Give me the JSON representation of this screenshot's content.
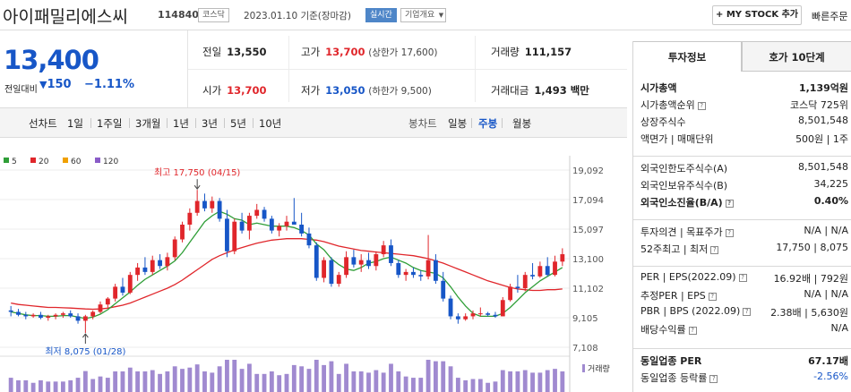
{
  "header": {
    "name": "아이패밀리에스씨",
    "code": "114840",
    "market": "코스닥",
    "date_text": "2023.01.10 기준(장마감)",
    "realtime": "실시간",
    "overview": "기업개요",
    "mystock": "+ MY STOCK 추가",
    "quick_order": "빠른주문"
  },
  "price": {
    "current": "13,400",
    "change_label": "전일대비",
    "change": "150",
    "change_pct": "−1.11%"
  },
  "summary": {
    "prev_label": "전일",
    "prev": "13,550",
    "high_label": "고가",
    "high": "13,700",
    "upper_limit": "(상한가 17,600)",
    "volume_label": "거래량",
    "volume": "111,157",
    "open_label": "시가",
    "open": "13,700",
    "low_label": "저가",
    "low": "13,050",
    "lower_limit": "(하한가 9,500)",
    "value_label": "거래대금",
    "value": "1,493 백만"
  },
  "tabs": {
    "line_label": "선차트",
    "line": [
      "1일",
      "1주일",
      "3개월",
      "1년",
      "3년",
      "5년",
      "10년"
    ],
    "candle_label": "봉차트",
    "candle": [
      "일봉",
      "주봉",
      "월봉"
    ],
    "candle_active": "주봉"
  },
  "chart_data": {
    "type": "candlestick",
    "ma_legend": [
      {
        "name": "5",
        "color": "#2f9e37"
      },
      {
        "name": "20",
        "color": "#e0262b"
      },
      {
        "name": "60",
        "color": "#f0a000"
      },
      {
        "name": "120",
        "color": "#8a5cc8"
      }
    ],
    "y_ticks": [
      "19,092",
      "17,094",
      "15,097",
      "13,100",
      "11,102",
      "9,105",
      "7,108"
    ],
    "ylim": [
      7108,
      19092
    ],
    "max_annotation": "최고 17,750 (04/15)",
    "min_annotation": "최저 8,075 (01/28)",
    "volume_label": "거래량",
    "up_color": "#e0262b",
    "down_color": "#1756c7",
    "candles": [
      [
        9600,
        9900,
        9200,
        9500
      ],
      [
        9500,
        9700,
        9200,
        9300
      ],
      [
        9300,
        9500,
        9000,
        9200
      ],
      [
        9200,
        9400,
        9100,
        9300
      ],
      [
        9300,
        9500,
        9000,
        9100
      ],
      [
        9100,
        9300,
        8900,
        9200
      ],
      [
        9200,
        9400,
        9000,
        9300
      ],
      [
        9300,
        9500,
        9100,
        9400
      ],
      [
        9400,
        9600,
        9100,
        9200
      ],
      [
        9200,
        9400,
        8700,
        8900
      ],
      [
        8900,
        9300,
        8075,
        9200
      ],
      [
        9200,
        9600,
        9000,
        9500
      ],
      [
        9500,
        10200,
        9400,
        10000
      ],
      [
        10000,
        10500,
        9800,
        10400
      ],
      [
        10400,
        11400,
        10200,
        11200
      ],
      [
        11200,
        11800,
        10600,
        10800
      ],
      [
        10800,
        12200,
        10700,
        12000
      ],
      [
        12000,
        12800,
        11600,
        12500
      ],
      [
        12500,
        13200,
        12000,
        12200
      ],
      [
        12200,
        13300,
        12000,
        13000
      ],
      [
        13000,
        13400,
        12400,
        12600
      ],
      [
        12600,
        13500,
        12300,
        13200
      ],
      [
        13200,
        14600,
        13000,
        14400
      ],
      [
        14400,
        15600,
        14200,
        15400
      ],
      [
        15400,
        16500,
        15000,
        16200
      ],
      [
        16200,
        17750,
        16000,
        17000
      ],
      [
        17000,
        17500,
        16300,
        16500
      ],
      [
        16500,
        17300,
        16200,
        17000
      ],
      [
        17000,
        17200,
        15600,
        15800
      ],
      [
        15800,
        16400,
        13200,
        13600
      ],
      [
        13600,
        15800,
        13400,
        15600
      ],
      [
        15600,
        16200,
        14800,
        15000
      ],
      [
        15000,
        16200,
        14400,
        16000
      ],
      [
        16000,
        16800,
        15800,
        16400
      ],
      [
        16400,
        16600,
        15600,
        15800
      ],
      [
        15800,
        16000,
        14800,
        15000
      ],
      [
        15000,
        15500,
        14600,
        15300
      ],
      [
        15300,
        16000,
        15000,
        15600
      ],
      [
        15600,
        17200,
        15500,
        15400
      ],
      [
        15400,
        16200,
        14600,
        14800
      ],
      [
        14800,
        15200,
        13800,
        14000
      ],
      [
        14000,
        14200,
        11600,
        11800
      ],
      [
        11800,
        13200,
        11500,
        13000
      ],
      [
        13000,
        13200,
        11200,
        11400
      ],
      [
        11400,
        12200,
        11200,
        12000
      ],
      [
        12000,
        13600,
        11800,
        13200
      ],
      [
        13200,
        13700,
        12500,
        12700
      ],
      [
        12700,
        13400,
        12200,
        13000
      ],
      [
        13000,
        13500,
        12400,
        12600
      ],
      [
        12600,
        13600,
        12300,
        13400
      ],
      [
        13400,
        14300,
        13200,
        14000
      ],
      [
        14000,
        14400,
        12600,
        12800
      ],
      [
        12800,
        13000,
        11800,
        12000
      ],
      [
        12000,
        12400,
        11600,
        12200
      ],
      [
        12200,
        12500,
        11800,
        12000
      ],
      [
        12000,
        12300,
        11600,
        11900
      ],
      [
        11900,
        14700,
        11700,
        13000
      ],
      [
        13000,
        13400,
        11400,
        11600
      ],
      [
        11600,
        12200,
        10200,
        10400
      ],
      [
        10400,
        10600,
        9000,
        9200
      ],
      [
        9200,
        9400,
        8700,
        9000
      ],
      [
        9000,
        9400,
        8900,
        9200
      ],
      [
        9200,
        9600,
        9000,
        9400
      ],
      [
        9400,
        9800,
        9200,
        9400
      ],
      [
        9400,
        9500,
        9200,
        9300
      ],
      [
        9300,
        9500,
        9100,
        9200
      ],
      [
        9200,
        10500,
        9200,
        10300
      ],
      [
        10300,
        11400,
        10200,
        11200
      ],
      [
        11200,
        12000,
        10800,
        11100
      ],
      [
        11100,
        12200,
        10900,
        12000
      ],
      [
        12000,
        12800,
        11700,
        11900
      ],
      [
        11900,
        12900,
        11800,
        12600
      ],
      [
        12600,
        13200,
        11900,
        12000
      ],
      [
        12000,
        13300,
        11900,
        12900
      ],
      [
        12900,
        13800,
        12600,
        13400
      ]
    ],
    "ma5": [
      9500,
      9400,
      9300,
      9250,
      9250,
      9200,
      9200,
      9250,
      9250,
      9150,
      9050,
      9150,
      9350,
      9650,
      10050,
      10450,
      10850,
      11300,
      11700,
      12000,
      12300,
      12600,
      12950,
      13500,
      14200,
      14900,
      15600,
      16000,
      16300,
      16100,
      15800,
      15700,
      15400,
      15500,
      15400,
      15300,
      15300,
      15300,
      15200,
      15000,
      14700,
      14100,
      13700,
      13100,
      12700,
      12400,
      12300,
      12500,
      12800,
      12900,
      13100,
      13200,
      13000,
      12800,
      12500,
      12300,
      12200,
      12100,
      11800,
      11200,
      10500,
      9900,
      9400,
      9200,
      9200,
      9200,
      9400,
      9800,
      10300,
      10800,
      11200,
      11600,
      11900,
      12200,
      12500
    ],
    "ma20": [
      10100,
      10000,
      9950,
      9900,
      9850,
      9800,
      9800,
      9780,
      9760,
      9730,
      9700,
      9680,
      9700,
      9750,
      9850,
      9950,
      10100,
      10300,
      10500,
      10700,
      10900,
      11100,
      11350,
      11650,
      12000,
      12350,
      12700,
      13050,
      13300,
      13500,
      13700,
      13850,
      14000,
      14150,
      14250,
      14350,
      14400,
      14450,
      14450,
      14450,
      14400,
      14350,
      14250,
      14100,
      13950,
      13850,
      13750,
      13650,
      13600,
      13550,
      13500,
      13450,
      13400,
      13350,
      13300,
      13200,
      13100,
      12950,
      12800,
      12600,
      12400,
      12200,
      12000,
      11800,
      11600,
      11450,
      11300,
      11150,
      11050,
      11000,
      10950,
      10950,
      11000,
      11000,
      11050
    ]
  },
  "side": {
    "tab_invest": "투자정보",
    "tab_hoga": "호가 10단계",
    "rows1": [
      {
        "k": "시가총액",
        "v": "1,139억원",
        "bold": true
      },
      {
        "k": "시가총액순위",
        "v": "코스닥 725위"
      },
      {
        "k": "상장주식수",
        "v": "8,501,548"
      },
      {
        "k": "액면가 | 매매단위",
        "v": "500원 | 1주"
      }
    ],
    "rows2": [
      {
        "k": "외국인한도주식수(A)",
        "v": "8,501,548"
      },
      {
        "k": "외국인보유주식수(B)",
        "v": "34,225"
      },
      {
        "k": "외국인소진율(B/A)",
        "v": "0.40%",
        "bold": true
      }
    ],
    "rows3": [
      {
        "k": "투자의견 | 목표주가",
        "v": "N/A | N/A"
      },
      {
        "k": "52주최고 | 최저",
        "v": "17,750 | 8,075"
      }
    ],
    "rows4": [
      {
        "k": "PER | EPS(2022.09)",
        "v": "16.92배 | 792원"
      },
      {
        "k": "추정PER | EPS",
        "v": "N/A | N/A"
      },
      {
        "k": "PBR | BPS (2022.09)",
        "v": "2.38배 | 5,630원"
      },
      {
        "k": "배당수익률",
        "v": "N/A"
      }
    ],
    "rows5": [
      {
        "k": "동일업종 PER",
        "v": "67.17배",
        "bold": true
      },
      {
        "k": "동일업종 등락률",
        "v": "-2.56%",
        "blue": true
      }
    ]
  }
}
